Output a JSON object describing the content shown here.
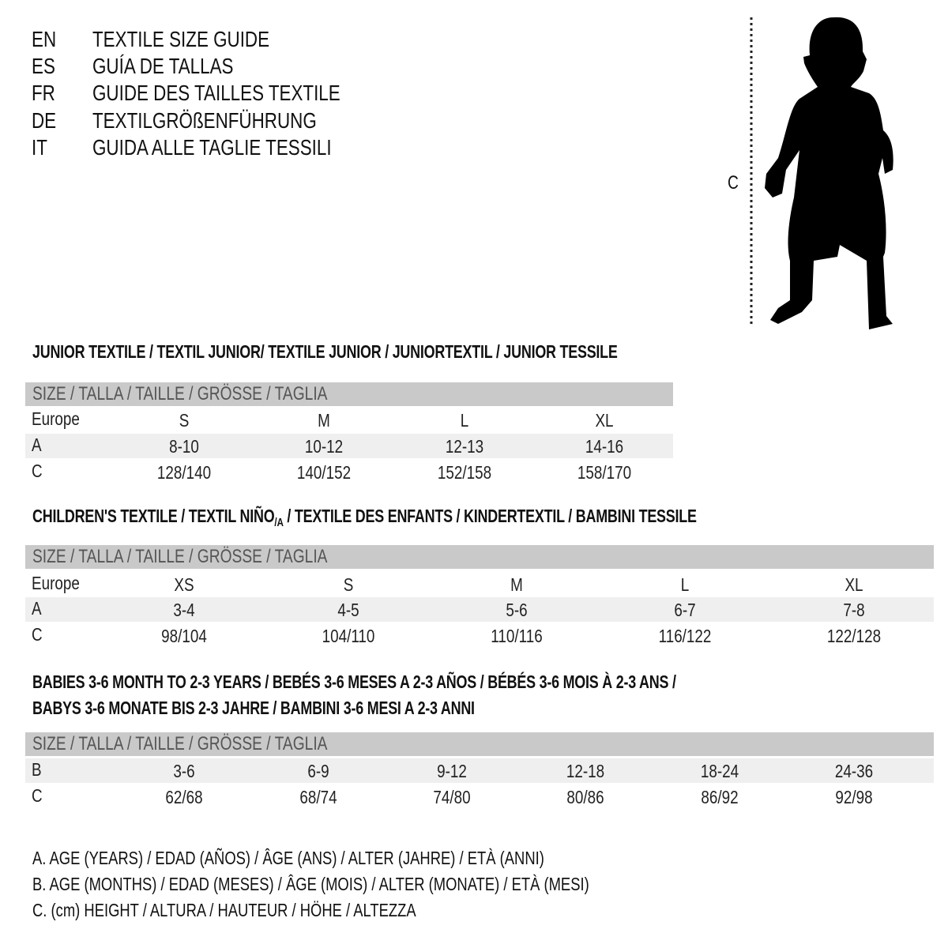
{
  "languages": [
    {
      "code": "EN",
      "title": "TEXTILE SIZE GUIDE"
    },
    {
      "code": "ES",
      "title": "GUÍA DE TALLAS"
    },
    {
      "code": "FR",
      "title": "GUIDE DES TAILLES TEXTILE"
    },
    {
      "code": "DE",
      "title": "TEXTILGRÖßENFÜHRUNG"
    },
    {
      "code": "IT",
      "title": "GUIDA ALLE TAGLIE TESSILI"
    }
  ],
  "illustration": {
    "measure_label": "C",
    "icon": "child-silhouette-icon"
  },
  "size_header": "SIZE / TALLA / TAILLE / GRÖSSE / TAGLIA",
  "colors": {
    "header_bar": "#c9c9c9",
    "shaded_row": "#efefef",
    "header_text": "#555555"
  },
  "junior": {
    "title": "JUNIOR TEXTILE / TEXTIL JUNIOR/ TEXTILE JUNIOR / JUNIORTEXTIL / JUNIOR TESSILE",
    "rows": [
      {
        "label": "Europe",
        "values": [
          "S",
          "M",
          "L",
          "XL"
        ]
      },
      {
        "label": "A",
        "values": [
          "8-10",
          "10-12",
          "12-13",
          "14-16"
        ]
      },
      {
        "label": "C",
        "values": [
          "128/140",
          "140/152",
          "152/158",
          "158/170"
        ]
      }
    ]
  },
  "children": {
    "title_part1": "CHILDREN'S TEXTILE / TEXTIL NIÑO",
    "title_sub": "/A",
    "title_part2": " / TEXTILE DES ENFANTS / KINDERTEXTIL / BAMBINI TESSILE",
    "rows": [
      {
        "label": "Europe",
        "values": [
          "XS",
          "S",
          "M",
          "L",
          "XL"
        ]
      },
      {
        "label": "A",
        "values": [
          "3-4",
          "4-5",
          "5-6",
          "6-7",
          "7-8"
        ]
      },
      {
        "label": "C",
        "values": [
          "98/104",
          "104/110",
          "110/116",
          "116/122",
          "122/128"
        ]
      }
    ]
  },
  "babies": {
    "title_line1": "BABIES 3-6 MONTH TO 2-3 YEARS / BEBÉS 3-6 MESES A 2-3 AÑOS / BÉBÉS 3-6 MOIS À 2-3 ANS /",
    "title_line2": "BABYS 3-6 MONATE BIS 2-3 JAHRE / BAMBINI 3-6 MESI A 2-3 ANNI",
    "rows": [
      {
        "label": "B",
        "values": [
          "3-6",
          "6-9",
          "9-12",
          "12-18",
          "18-24",
          "24-36"
        ]
      },
      {
        "label": "C",
        "values": [
          "62/68",
          "68/74",
          "74/80",
          "80/86",
          "86/92",
          "92/98"
        ]
      }
    ]
  },
  "legend": [
    "A. AGE (YEARS) / EDAD (AÑOS) / ÂGE (ANS) / ALTER (JAHRE) / ETÀ (ANNI)",
    "B. AGE (MONTHS) / EDAD (MESES) / ÂGE (MOIS) / ALTER (MONATE) / ETÀ (MESI)",
    "C. (cm) HEIGHT / ALTURA / HAUTEUR / HÖHE / ALTEZZA"
  ]
}
